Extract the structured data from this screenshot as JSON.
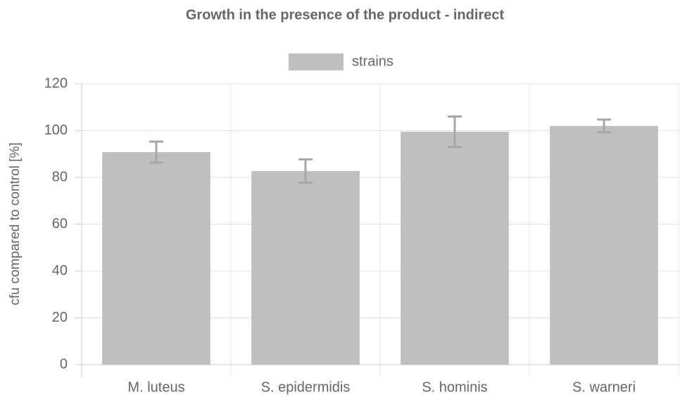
{
  "chart_data": {
    "type": "bar",
    "title": "Growth in the presence of the product - indirect",
    "y_label": "cfu compared to control [%]",
    "categories": [
      "M. luteus",
      "S. epidermidis",
      "S. hominis",
      "S. warneri"
    ],
    "series": [
      {
        "name": "strains",
        "color": "#bfbfbf",
        "error_color": "#a6a6a6",
        "values": [
          90.8,
          82.7,
          99.5,
          102
        ],
        "errors": [
          4.5,
          5,
          6.5,
          2.7
        ]
      }
    ],
    "ylim": [
      0,
      120
    ],
    "yticks": [
      0,
      20,
      40,
      60,
      80,
      100,
      120
    ],
    "grid": true,
    "legend": "top"
  }
}
